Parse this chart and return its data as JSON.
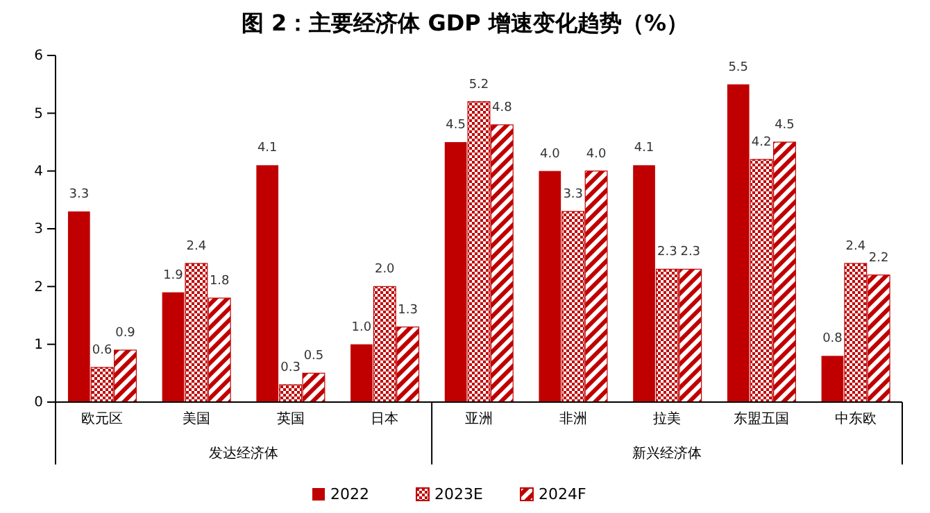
{
  "chart_data": {
    "type": "bar",
    "title": "图 2：主要经济体 GDP 增速变化趋势（%）",
    "categories": [
      "欧元区",
      "美国",
      "英国",
      "日本",
      "亚洲",
      "非洲",
      "拉美",
      "东盟五国",
      "中东欧"
    ],
    "series": [
      {
        "name": "2022",
        "color": "#c00000",
        "values": [
          3.3,
          1.9,
          4.1,
          1.0,
          4.5,
          4.0,
          4.1,
          5.5,
          0.8
        ],
        "value_labels": [
          "3.3",
          "1.9",
          "4.1",
          "1.0",
          "4.5",
          "4.0",
          "4.1",
          "5.5",
          "0.8"
        ]
      },
      {
        "name": "2023E",
        "color": "#c00000",
        "values": [
          0.6,
          2.4,
          0.3,
          2.0,
          5.2,
          3.3,
          2.3,
          4.2,
          2.4
        ],
        "value_labels": [
          "0.6",
          "2.4",
          "0.3",
          "2.0",
          "5.2",
          "3.3",
          "2.3",
          "4.2",
          "2.4"
        ]
      },
      {
        "name": "2024F",
        "color": "#c00000",
        "values": [
          0.9,
          1.8,
          0.5,
          1.3,
          4.8,
          4.0,
          2.3,
          4.5,
          2.2
        ],
        "value_labels": [
          "0.9",
          "1.8",
          "0.5",
          "1.3",
          "4.8",
          "4.0",
          "2.3",
          "4.5",
          "2.2"
        ]
      }
    ],
    "ylim": [
      0,
      6
    ],
    "yticks": [
      0,
      1,
      2,
      3,
      4,
      5,
      6
    ],
    "grid": false,
    "legend": "bottom",
    "annotations": [
      "发达经济体",
      "新兴经济体"
    ]
  }
}
